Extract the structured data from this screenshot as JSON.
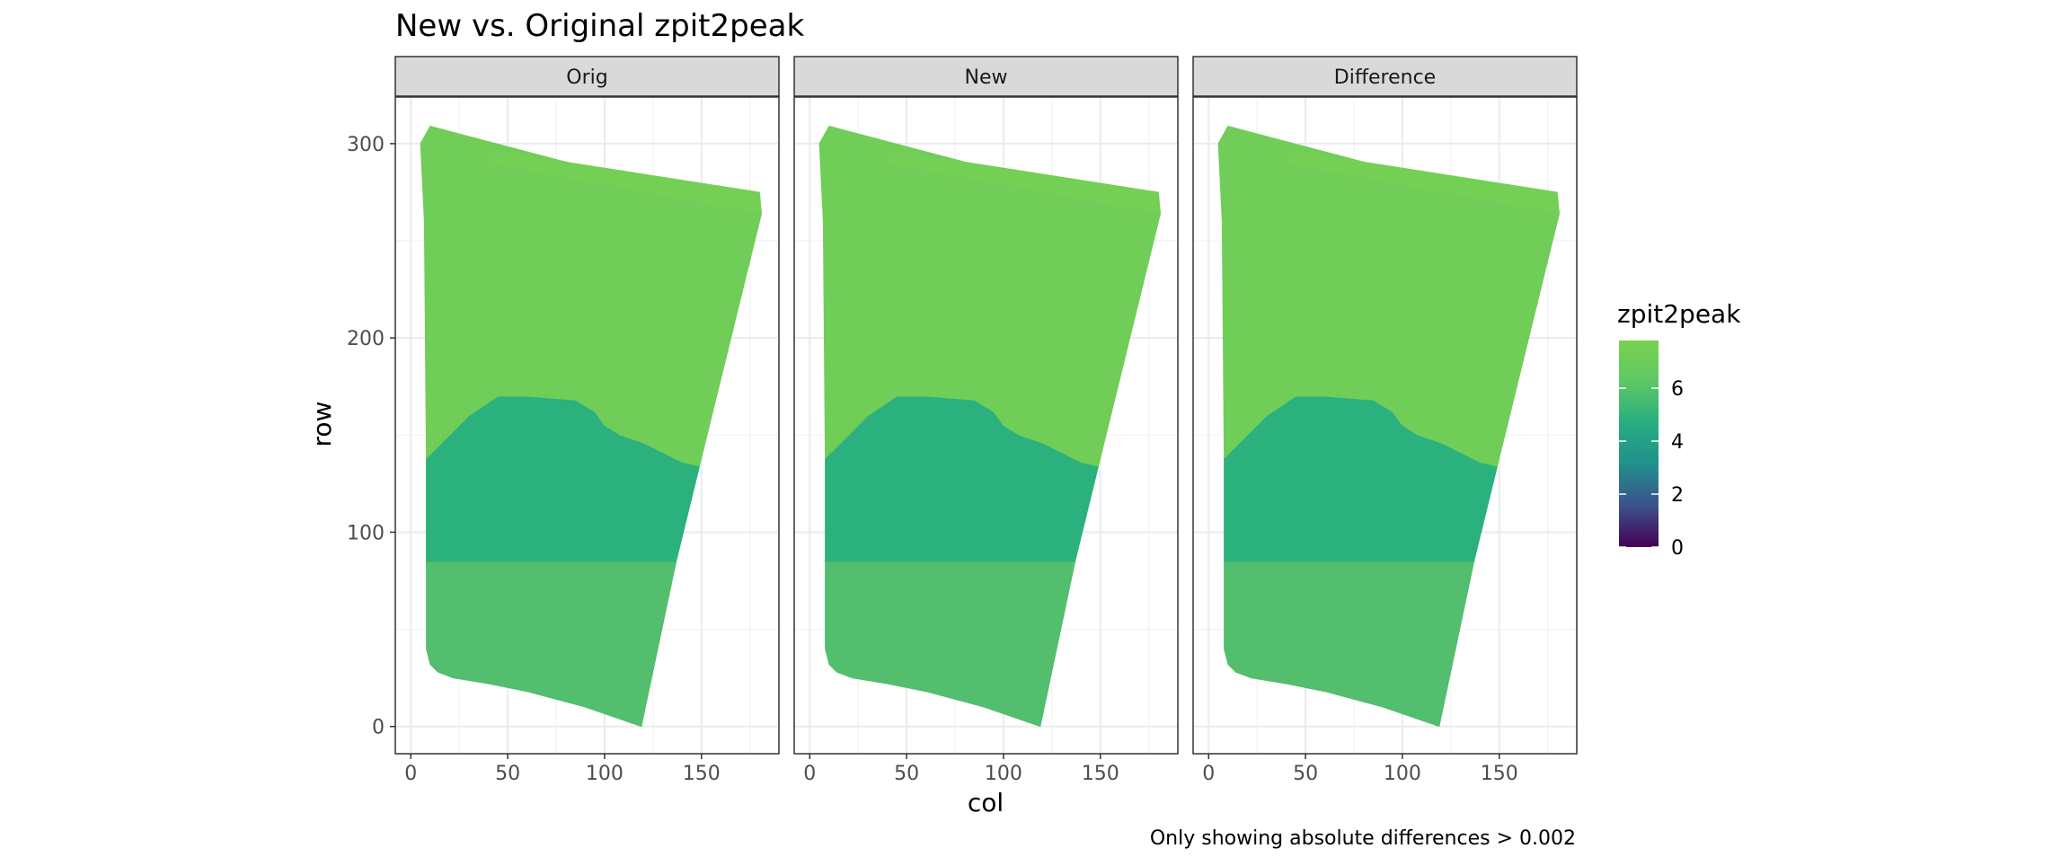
{
  "chart_data": {
    "type": "heatmap",
    "title": "New vs. Original zpit2peak",
    "caption": "Only showing absolute differences > 0.002",
    "xlabel": "col",
    "ylabel": "row",
    "xlim": [
      -8,
      190
    ],
    "ylim": [
      324,
      -14
    ],
    "y_reversed": true,
    "x_ticks": [
      0,
      50,
      100,
      150
    ],
    "y_ticks": [
      0,
      100,
      200,
      300
    ],
    "grid": true,
    "na_color": "#7f7f7f",
    "facets": [
      {
        "label": "Orig",
        "background_value": 0
      },
      {
        "label": "New",
        "background_value": null
      },
      {
        "label": "Difference",
        "background_value": null
      }
    ],
    "raster": {
      "x_range": [
        0,
        181
      ],
      "y_range": [
        0,
        309
      ],
      "zones": [
        {
          "value": 6.9,
          "color": "#52BE6E",
          "outline": [
            [
              8,
              40
            ],
            [
              10,
              32
            ],
            [
              14,
              28
            ],
            [
              22,
              25
            ],
            [
              40,
              22
            ],
            [
              60,
              18
            ],
            [
              90,
              10
            ],
            [
              119,
              0
            ],
            [
              137,
              85
            ],
            [
              8,
              85
            ]
          ]
        },
        {
          "value": 6.3,
          "color": "#2BB17D",
          "outline": [
            [
              8,
              85
            ],
            [
              137,
              85
            ],
            [
              149,
              134
            ],
            [
              140,
              136
            ],
            [
              132,
              140
            ],
            [
              120,
              146
            ],
            [
              108,
              150
            ],
            [
              100,
              155
            ],
            [
              95,
              162
            ],
            [
              85,
              168
            ],
            [
              60,
              170
            ],
            [
              45,
              170
            ],
            [
              30,
              160
            ],
            [
              20,
              150
            ],
            [
              8,
              138
            ]
          ]
        },
        {
          "value": 7.4,
          "color": "#70CD58",
          "outline": [
            [
              8,
              138
            ],
            [
              20,
              150
            ],
            [
              30,
              160
            ],
            [
              45,
              170
            ],
            [
              60,
              170
            ],
            [
              85,
              168
            ],
            [
              95,
              162
            ],
            [
              100,
              155
            ],
            [
              108,
              150
            ],
            [
              120,
              146
            ],
            [
              132,
              140
            ],
            [
              140,
              136
            ],
            [
              149,
              134
            ],
            [
              181,
              264
            ],
            [
              10,
              309
            ],
            [
              5,
              300
            ],
            [
              7,
              260
            ]
          ]
        },
        {
          "value": 7.6,
          "color": "#74CF55",
          "outline": [
            [
              40,
              290
            ],
            [
              181,
              264
            ],
            [
              180,
              275
            ],
            [
              45,
              296
            ]
          ]
        }
      ]
    },
    "legend": {
      "title": "zpit2peak",
      "position": "right",
      "range": [
        0,
        7.8
      ],
      "ticks": [
        0,
        2,
        4,
        6
      ],
      "colors": [
        "#440154",
        "#3B528B",
        "#21908C",
        "#27AD81",
        "#5DC863",
        "#7AD151"
      ]
    }
  }
}
